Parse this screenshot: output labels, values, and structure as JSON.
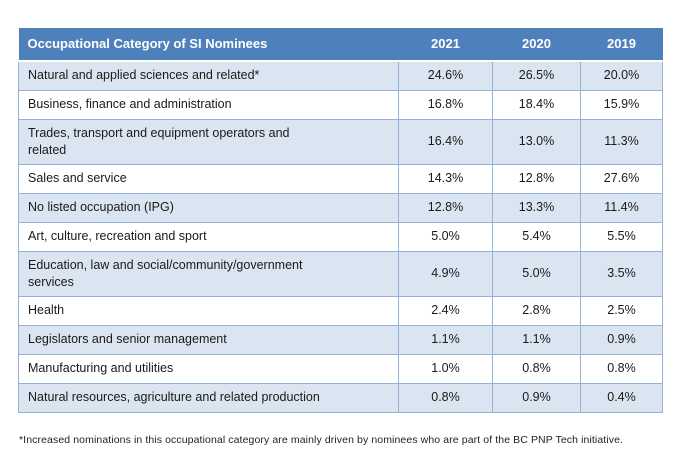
{
  "colors": {
    "header_bg": "#4e80bc",
    "header_text": "#ffffff",
    "row_shaded_bg": "#dbe5f1",
    "row_plain_bg": "#ffffff",
    "border": "#95b3d7",
    "body_text": "#1a1a1a"
  },
  "table": {
    "title": "Occupational Category of SI Nominees",
    "year_headers": [
      "2021",
      "2020",
      "2019"
    ],
    "rows": [
      {
        "category": "Natural and applied sciences and related*",
        "values": [
          "24.6%",
          "26.5%",
          "20.0%"
        ]
      },
      {
        "category": "Business, finance and administration",
        "values": [
          "16.8%",
          "18.4%",
          "15.9%"
        ]
      },
      {
        "category": "Trades, transport and equipment operators and\nrelated",
        "values": [
          "16.4%",
          "13.0%",
          "11.3%"
        ]
      },
      {
        "category": "Sales and service",
        "values": [
          "14.3%",
          "12.8%",
          "27.6%"
        ]
      },
      {
        "category": "No listed occupation (IPG)",
        "values": [
          "12.8%",
          "13.3%",
          "11.4%"
        ]
      },
      {
        "category": "Art, culture, recreation and sport",
        "values": [
          "5.0%",
          "5.4%",
          "5.5%"
        ]
      },
      {
        "category": "Education, law and social/community/government\nservices",
        "values": [
          "4.9%",
          "5.0%",
          "3.5%"
        ]
      },
      {
        "category": "Health",
        "values": [
          "2.4%",
          "2.8%",
          "2.5%"
        ]
      },
      {
        "category": "Legislators and senior management",
        "values": [
          "1.1%",
          "1.1%",
          "0.9%"
        ]
      },
      {
        "category": "Manufacturing and utilities",
        "values": [
          "1.0%",
          "0.8%",
          "0.8%"
        ]
      },
      {
        "category": "Natural resources, agriculture and related production",
        "values": [
          "0.8%",
          "0.9%",
          "0.4%"
        ]
      }
    ]
  },
  "footnote": "*Increased nominations in this occupational category are mainly driven by nominees who are part of the BC PNP Tech initiative.",
  "chart_data": {
    "type": "table",
    "title": "Occupational Category of SI Nominees",
    "categories": [
      "Natural and applied sciences and related*",
      "Business, finance and administration",
      "Trades, transport and equipment operators and related",
      "Sales and service",
      "No listed occupation (IPG)",
      "Art, culture, recreation and sport",
      "Education, law and social/community/government services",
      "Health",
      "Legislators and senior management",
      "Manufacturing and utilities",
      "Natural resources, agriculture and related production"
    ],
    "series": [
      {
        "name": "2021",
        "values": [
          24.6,
          16.8,
          16.4,
          14.3,
          12.8,
          5.0,
          4.9,
          2.4,
          1.1,
          1.0,
          0.8
        ]
      },
      {
        "name": "2020",
        "values": [
          26.5,
          18.4,
          13.0,
          12.8,
          13.3,
          5.4,
          5.0,
          2.8,
          1.1,
          0.8,
          0.9
        ]
      },
      {
        "name": "2019",
        "values": [
          20.0,
          15.9,
          11.3,
          27.6,
          11.4,
          5.5,
          3.5,
          2.5,
          0.9,
          0.8,
          0.4
        ]
      }
    ],
    "value_unit": "%",
    "footnote": "*Increased nominations in this occupational category are mainly driven by nominees who are part of the BC PNP Tech initiative."
  }
}
